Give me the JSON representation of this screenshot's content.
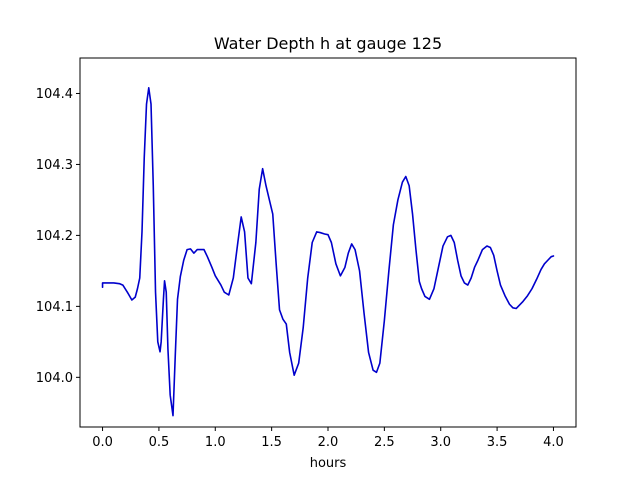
{
  "chart_data": {
    "type": "line",
    "title": "Water Depth h at gauge 125",
    "xlabel": "hours",
    "ylabel": "",
    "xlim": [
      -0.2,
      4.2
    ],
    "ylim": [
      103.93,
      104.45
    ],
    "xticks": [
      {
        "value": 0.0,
        "label": "0.0"
      },
      {
        "value": 0.5,
        "label": "0.5"
      },
      {
        "value": 1.0,
        "label": "1.0"
      },
      {
        "value": 1.5,
        "label": "1.5"
      },
      {
        "value": 2.0,
        "label": "2.0"
      },
      {
        "value": 2.5,
        "label": "2.5"
      },
      {
        "value": 3.0,
        "label": "3.0"
      },
      {
        "value": 3.5,
        "label": "3.5"
      },
      {
        "value": 4.0,
        "label": "4.0"
      }
    ],
    "yticks": [
      {
        "value": 104.0,
        "label": "104.0"
      },
      {
        "value": 104.1,
        "label": "104.1"
      },
      {
        "value": 104.2,
        "label": "104.2"
      },
      {
        "value": 104.3,
        "label": "104.3"
      },
      {
        "value": 104.4,
        "label": "104.4"
      }
    ],
    "grid": false,
    "legend": "none",
    "color": "#0000cc",
    "series": [
      {
        "x": [
          0.0,
          0.0,
          0.05,
          0.1,
          0.15,
          0.18,
          0.22,
          0.26,
          0.29,
          0.31,
          0.33,
          0.35,
          0.37,
          0.39,
          0.41,
          0.43,
          0.45,
          0.47,
          0.49,
          0.51,
          0.52,
          0.54,
          0.55,
          0.565,
          0.58,
          0.6,
          0.625,
          0.645,
          0.665,
          0.69,
          0.72,
          0.75,
          0.78,
          0.81,
          0.84,
          0.87,
          0.9,
          0.93,
          0.97,
          1.0,
          1.05,
          1.08,
          1.12,
          1.16,
          1.2,
          1.23,
          1.26,
          1.29,
          1.32,
          1.36,
          1.39,
          1.42,
          1.45,
          1.48,
          1.51,
          1.54,
          1.57,
          1.6,
          1.63,
          1.66,
          1.7,
          1.74,
          1.78,
          1.82,
          1.86,
          1.9,
          1.93,
          1.97,
          2.0,
          2.03,
          2.07,
          2.11,
          2.15,
          2.18,
          2.21,
          2.24,
          2.28,
          2.32,
          2.36,
          2.4,
          2.43,
          2.46,
          2.5,
          2.54,
          2.58,
          2.62,
          2.66,
          2.69,
          2.72,
          2.75,
          2.78,
          2.81,
          2.83,
          2.86,
          2.9,
          2.94,
          2.98,
          3.02,
          3.06,
          3.09,
          3.12,
          3.15,
          3.18,
          3.21,
          3.24,
          3.27,
          3.3,
          3.33,
          3.37,
          3.41,
          3.44,
          3.47,
          3.5,
          3.53,
          3.57,
          3.61,
          3.64,
          3.67,
          3.7,
          3.73,
          3.77,
          3.81,
          3.85,
          3.89,
          3.92,
          3.95,
          3.98,
          4.0
        ],
        "y": [
          104.127,
          104.133,
          104.133,
          104.133,
          104.132,
          104.13,
          104.12,
          104.109,
          104.113,
          104.125,
          104.14,
          104.205,
          104.31,
          104.385,
          104.408,
          104.385,
          104.27,
          104.12,
          104.05,
          104.036,
          104.05,
          104.11,
          104.136,
          104.12,
          104.04,
          103.975,
          103.946,
          104.03,
          104.11,
          104.142,
          104.165,
          104.18,
          104.181,
          104.175,
          104.18,
          104.18,
          104.18,
          104.17,
          104.155,
          104.143,
          104.13,
          104.12,
          104.116,
          104.14,
          104.19,
          104.226,
          104.205,
          104.14,
          104.132,
          104.19,
          104.265,
          104.294,
          104.27,
          104.25,
          104.23,
          104.16,
          104.095,
          104.082,
          104.075,
          104.035,
          104.003,
          104.02,
          104.07,
          104.14,
          104.19,
          104.205,
          104.204,
          104.202,
          104.201,
          104.19,
          104.16,
          104.143,
          104.155,
          104.175,
          104.188,
          104.18,
          104.15,
          104.09,
          104.035,
          104.01,
          104.007,
          104.02,
          104.08,
          104.15,
          104.215,
          104.25,
          104.275,
          104.283,
          104.27,
          104.23,
          104.18,
          104.135,
          104.125,
          104.114,
          104.11,
          104.125,
          104.155,
          104.185,
          104.198,
          104.2,
          104.19,
          104.165,
          104.143,
          104.133,
          104.13,
          104.14,
          104.155,
          104.165,
          104.18,
          104.185,
          104.183,
          104.172,
          104.15,
          104.13,
          104.115,
          104.103,
          104.098,
          104.097,
          104.102,
          104.107,
          104.115,
          104.125,
          104.138,
          104.152,
          104.16,
          104.165,
          104.17,
          104.171
        ]
      }
    ]
  }
}
